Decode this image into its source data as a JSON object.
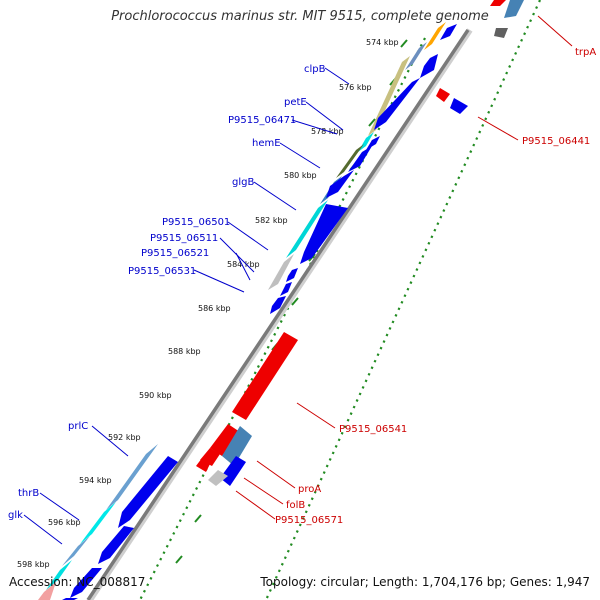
{
  "title": "Prochlorococcus marinus str. MIT 9515, complete genome",
  "footer": {
    "accession": "Accession: NC_008817",
    "summary": "Topology: circular; Length: 1,704,176 bp; Genes: 1,947"
  },
  "ticks": [
    "574 kbp",
    "576 kbp",
    "578 kbp",
    "580 kbp",
    "582 kbp",
    "584 kbp",
    "586 kbp",
    "588 kbp",
    "590 kbp",
    "592 kbp",
    "594 kbp",
    "596 kbp",
    "598 kbp"
  ],
  "colors": {
    "forward_label": "#0000cc",
    "reverse_label": "#cc0000",
    "backbone": "#7a7a7a",
    "dots": "#228b22",
    "cds_forward": "#0000ee",
    "cds_reverse": "#ee0000"
  },
  "forward_labels": [
    "clpB",
    "petE",
    "P9515_06471",
    "hemE",
    "glgB",
    "P9515_06501",
    "P9515_06511",
    "P9515_06521",
    "P9515_06531",
    "prlC",
    "thrB",
    "glk"
  ],
  "reverse_labels": [
    "trpA",
    "P9515_06441",
    "P9515_06541",
    "proA",
    "folB",
    "P9515_06571"
  ]
}
